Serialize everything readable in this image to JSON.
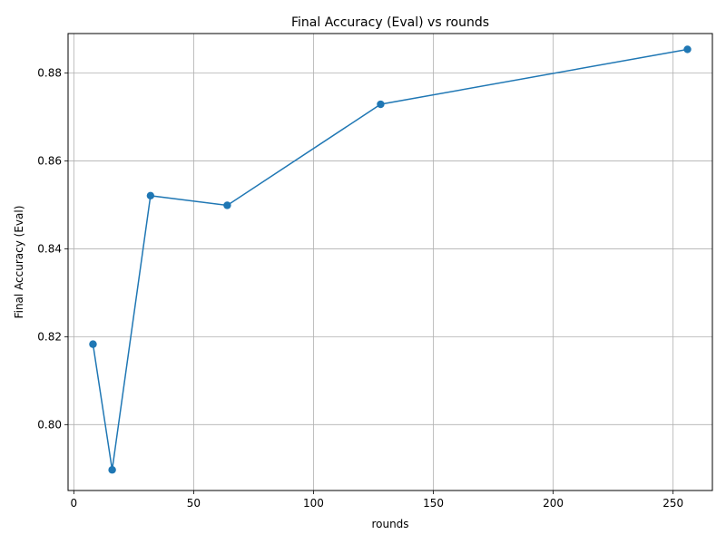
{
  "chart_data": {
    "type": "line",
    "title": "Final Accuracy (Eval) vs rounds",
    "xlabel": "rounds",
    "ylabel": "Final Accuracy (Eval)",
    "xlim": [
      -2.4,
      266.4
    ],
    "ylim": [
      0.785,
      0.889
    ],
    "xticks": [
      0,
      50,
      100,
      150,
      200,
      250
    ],
    "yticks": [
      0.8,
      0.82,
      0.84,
      0.86,
      0.88
    ],
    "xtick_labels": [
      "0",
      "50",
      "100",
      "150",
      "200",
      "250"
    ],
    "ytick_labels": [
      "0.80",
      "0.82",
      "0.84",
      "0.86",
      "0.88"
    ],
    "grid": true,
    "series": [
      {
        "color": "#1f77b4",
        "marker": "circle",
        "x": [
          8,
          16,
          32,
          64,
          128,
          256
        ],
        "y": [
          0.8183,
          0.7897,
          0.8521,
          0.8499,
          0.8729,
          0.8854
        ]
      }
    ]
  }
}
